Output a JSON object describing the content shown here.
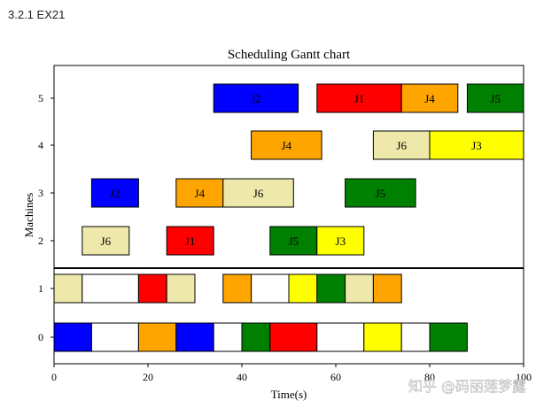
{
  "page": {
    "heading": "3.2.1 EX21",
    "watermark": "知乎 @码丽莲梦露"
  },
  "colors": {
    "J1": "#ff0000",
    "J2": "#0000ff",
    "J3": "#ffff00",
    "J4": "#ffa500",
    "J5": "#008000",
    "J6": "#eee8aa",
    "idle": "#ffffff"
  },
  "chart_data": {
    "type": "gantt",
    "title": "Scheduling Gantt chart",
    "xlabel": "Time(s)",
    "ylabel": "Machines",
    "xlim": [
      0,
      100
    ],
    "xticks": [
      0,
      20,
      40,
      60,
      80,
      100
    ],
    "machines": [
      0,
      1,
      2,
      3,
      4,
      5
    ],
    "separator_between": [
      1,
      2
    ],
    "labeled_rows": [
      2,
      3,
      4,
      5
    ],
    "tasks": [
      {
        "machine": 5,
        "job": "J2",
        "start": 34,
        "end": 52
      },
      {
        "machine": 5,
        "job": "J1",
        "start": 56,
        "end": 74
      },
      {
        "machine": 5,
        "job": "J4",
        "start": 74,
        "end": 86
      },
      {
        "machine": 5,
        "job": "J5",
        "start": 88,
        "end": 100
      },
      {
        "machine": 4,
        "job": "J4",
        "start": 42,
        "end": 57
      },
      {
        "machine": 4,
        "job": "J6",
        "start": 68,
        "end": 80
      },
      {
        "machine": 4,
        "job": "J3",
        "start": 80,
        "end": 100
      },
      {
        "machine": 3,
        "job": "J2",
        "start": 8,
        "end": 18
      },
      {
        "machine": 3,
        "job": "J4",
        "start": 26,
        "end": 36
      },
      {
        "machine": 3,
        "job": "J6",
        "start": 36,
        "end": 51
      },
      {
        "machine": 3,
        "job": "J5",
        "start": 62,
        "end": 77
      },
      {
        "machine": 2,
        "job": "J6",
        "start": 6,
        "end": 16
      },
      {
        "machine": 2,
        "job": "J1",
        "start": 24,
        "end": 34
      },
      {
        "machine": 2,
        "job": "J5",
        "start": 46,
        "end": 56
      },
      {
        "machine": 2,
        "job": "J3",
        "start": 56,
        "end": 66
      },
      {
        "machine": 1,
        "job": "J6",
        "start": 0,
        "end": 6
      },
      {
        "machine": 1,
        "job": "idle",
        "start": 6,
        "end": 18
      },
      {
        "machine": 1,
        "job": "J1",
        "start": 18,
        "end": 24
      },
      {
        "machine": 1,
        "job": "J6",
        "start": 24,
        "end": 30
      },
      {
        "machine": 1,
        "job": "J4",
        "start": 36,
        "end": 42
      },
      {
        "machine": 1,
        "job": "idle",
        "start": 42,
        "end": 50
      },
      {
        "machine": 1,
        "job": "J3",
        "start": 50,
        "end": 56
      },
      {
        "machine": 1,
        "job": "J5",
        "start": 56,
        "end": 62
      },
      {
        "machine": 1,
        "job": "J6",
        "start": 62,
        "end": 68
      },
      {
        "machine": 1,
        "job": "J4",
        "start": 68,
        "end": 74
      },
      {
        "machine": 0,
        "job": "J2",
        "start": 0,
        "end": 8
      },
      {
        "machine": 0,
        "job": "idle",
        "start": 8,
        "end": 18
      },
      {
        "machine": 0,
        "job": "J4",
        "start": 18,
        "end": 26
      },
      {
        "machine": 0,
        "job": "J2",
        "start": 26,
        "end": 34
      },
      {
        "machine": 0,
        "job": "idle",
        "start": 34,
        "end": 40
      },
      {
        "machine": 0,
        "job": "J5",
        "start": 40,
        "end": 46
      },
      {
        "machine": 0,
        "job": "J1",
        "start": 46,
        "end": 56
      },
      {
        "machine": 0,
        "job": "idle",
        "start": 56,
        "end": 66
      },
      {
        "machine": 0,
        "job": "J3",
        "start": 66,
        "end": 74
      },
      {
        "machine": 0,
        "job": "idle",
        "start": 74,
        "end": 80
      },
      {
        "machine": 0,
        "job": "J5",
        "start": 80,
        "end": 88
      }
    ]
  }
}
